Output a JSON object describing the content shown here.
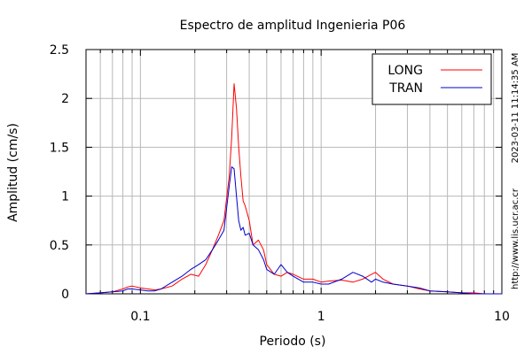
{
  "chart_data": {
    "type": "line",
    "title": "Espectro de amplitud Ingenieria P06",
    "xlabel": "Periodo (s)",
    "ylabel": "Amplitud (cm/s)",
    "xscale": "log",
    "xlim": [
      0.05,
      10
    ],
    "ylim": [
      0,
      2.5
    ],
    "grid": true,
    "legend_position": "top-right",
    "x_ticks": [
      0.1,
      1,
      10
    ],
    "x_tick_labels": [
      "0.1",
      "1",
      "10"
    ],
    "y_ticks": [
      0,
      0.5,
      1,
      1.5,
      2,
      2.5
    ],
    "y_tick_labels": [
      "0",
      "0.5",
      "1",
      "1.5",
      "2",
      "2.5"
    ],
    "series": [
      {
        "name": "LONG",
        "color": "#ff0000",
        "x": [
          0.05,
          0.06,
          0.07,
          0.08,
          0.085,
          0.09,
          0.1,
          0.11,
          0.12,
          0.13,
          0.15,
          0.17,
          0.19,
          0.21,
          0.23,
          0.25,
          0.27,
          0.29,
          0.31,
          0.32,
          0.33,
          0.34,
          0.35,
          0.36,
          0.37,
          0.38,
          0.4,
          0.42,
          0.45,
          0.48,
          0.5,
          0.55,
          0.6,
          0.65,
          0.7,
          0.8,
          0.9,
          1.0,
          1.1,
          1.3,
          1.5,
          1.7,
          1.9,
          2.0,
          2.2,
          2.5,
          3.0,
          3.5,
          4.0,
          5.0,
          6.0,
          7.0,
          8.0,
          10.0
        ],
        "y": [
          0.0,
          0.01,
          0.02,
          0.05,
          0.07,
          0.08,
          0.06,
          0.05,
          0.04,
          0.05,
          0.08,
          0.15,
          0.2,
          0.18,
          0.3,
          0.45,
          0.6,
          0.75,
          1.2,
          1.6,
          2.15,
          1.9,
          1.5,
          1.2,
          0.95,
          0.9,
          0.75,
          0.5,
          0.55,
          0.45,
          0.3,
          0.2,
          0.18,
          0.22,
          0.2,
          0.15,
          0.15,
          0.12,
          0.13,
          0.14,
          0.12,
          0.15,
          0.2,
          0.22,
          0.15,
          0.1,
          0.08,
          0.05,
          0.03,
          0.02,
          0.01,
          0.01,
          0.0,
          0.0
        ]
      },
      {
        "name": "TRAN",
        "color": "#0000cc",
        "x": [
          0.05,
          0.06,
          0.07,
          0.08,
          0.085,
          0.09,
          0.1,
          0.11,
          0.12,
          0.13,
          0.15,
          0.17,
          0.19,
          0.21,
          0.23,
          0.25,
          0.27,
          0.29,
          0.31,
          0.32,
          0.33,
          0.34,
          0.35,
          0.36,
          0.37,
          0.38,
          0.4,
          0.42,
          0.45,
          0.48,
          0.5,
          0.55,
          0.6,
          0.65,
          0.7,
          0.8,
          0.9,
          1.0,
          1.1,
          1.3,
          1.5,
          1.7,
          1.9,
          2.0,
          2.2,
          2.5,
          3.0,
          3.5,
          4.0,
          5.0,
          6.0,
          7.0,
          8.0,
          10.0
        ],
        "y": [
          0.0,
          0.01,
          0.02,
          0.03,
          0.05,
          0.05,
          0.04,
          0.03,
          0.03,
          0.05,
          0.12,
          0.18,
          0.25,
          0.3,
          0.35,
          0.45,
          0.55,
          0.65,
          1.1,
          1.3,
          1.28,
          1.0,
          0.75,
          0.65,
          0.68,
          0.6,
          0.62,
          0.5,
          0.45,
          0.35,
          0.25,
          0.2,
          0.3,
          0.22,
          0.18,
          0.12,
          0.12,
          0.1,
          0.1,
          0.15,
          0.22,
          0.18,
          0.12,
          0.15,
          0.12,
          0.1,
          0.08,
          0.06,
          0.03,
          0.02,
          0.01,
          0.0,
          0.0,
          0.0
        ]
      }
    ]
  },
  "side_text": {
    "timestamp": "2023-03-11 11:14:35 AM",
    "url": "http://www.lis.ucr.ac.cr"
  }
}
